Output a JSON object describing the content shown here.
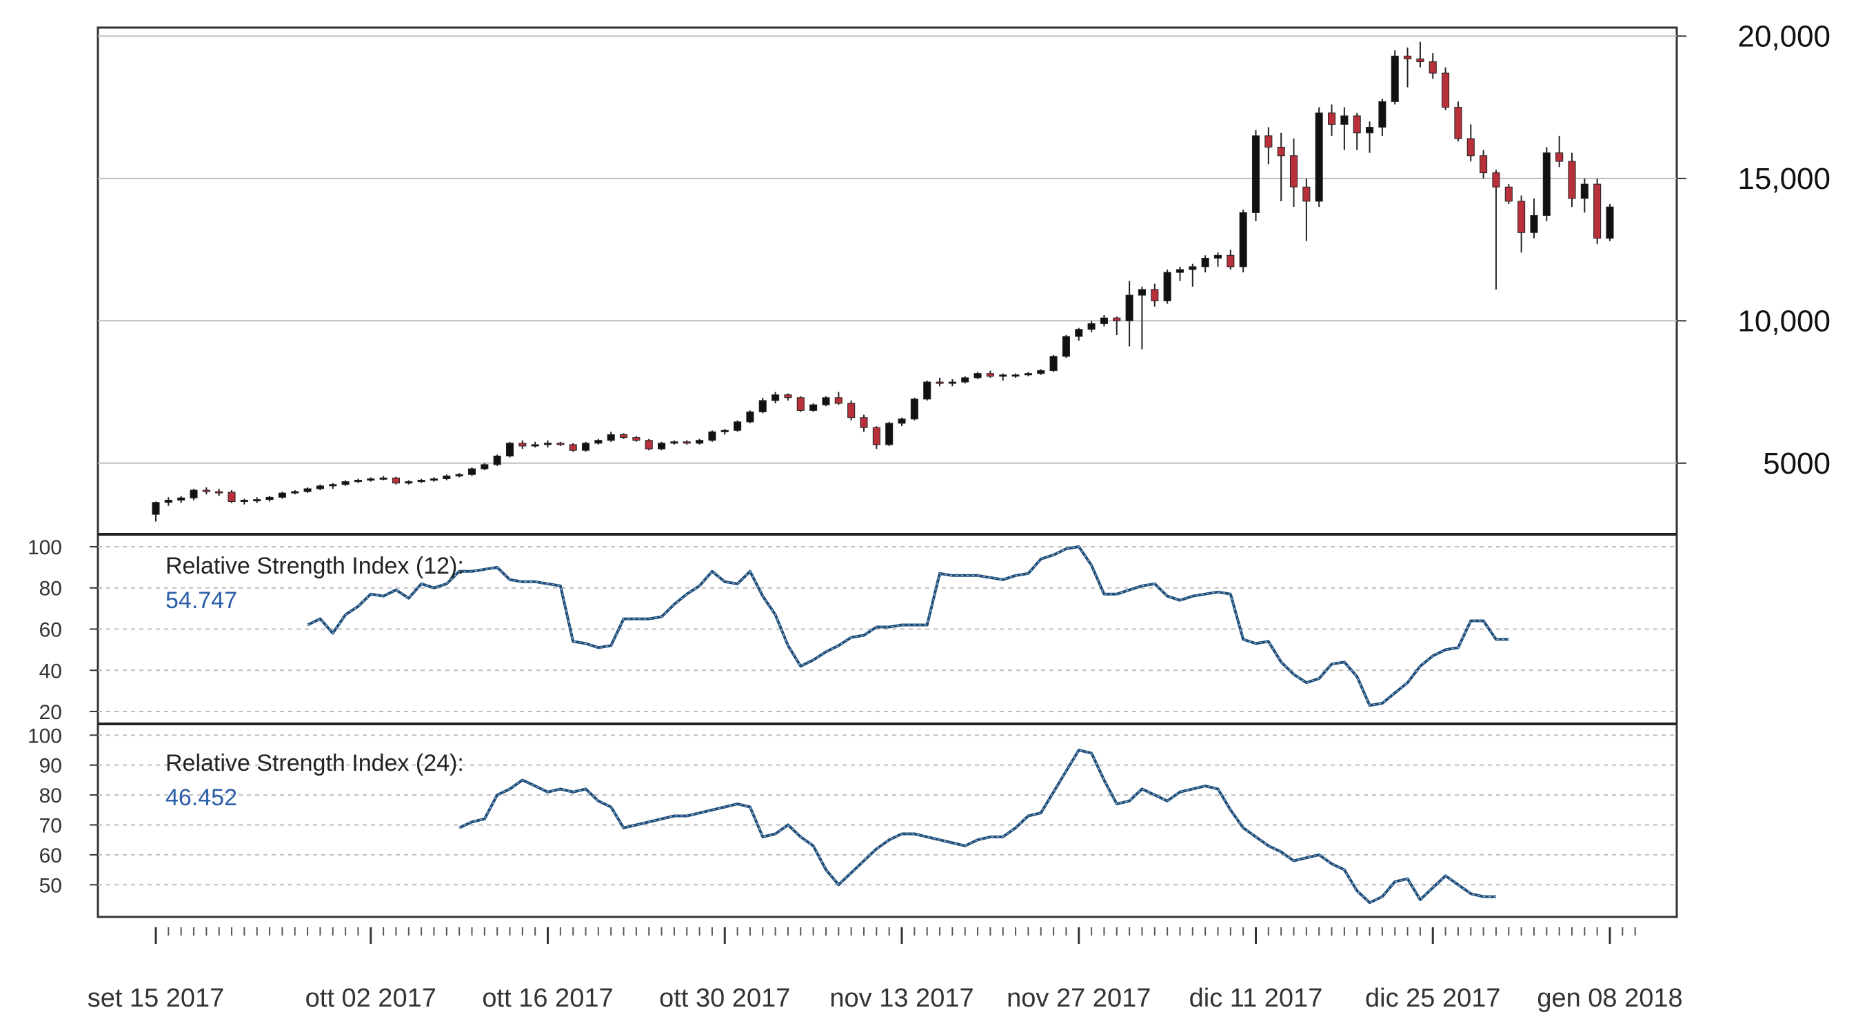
{
  "chart_data": {
    "type": "candlestick",
    "colors": {
      "up": "#111111",
      "down": "#b8313a",
      "rsi_line": "#1f4e79",
      "grid": "#bdbdbd",
      "frame": "#333333"
    },
    "x_tick_labels": [
      "set 15 2017",
      "ott 02 2017",
      "ott 16 2017",
      "ott 30 2017",
      "nov 13 2017",
      "nov 27 2017",
      "dic 11 2017",
      "dic 25 2017",
      "gen 08 2018"
    ],
    "x_tick_dates": [
      "2017-09-15",
      "2017-10-02",
      "2017-10-16",
      "2017-10-30",
      "2017-11-13",
      "2017-11-27",
      "2017-12-11",
      "2017-12-25",
      "2018-01-08"
    ],
    "price": {
      "y_tick_labels": [
        "5000",
        "10,000",
        "15,000",
        "20,000"
      ],
      "y_ticks": [
        5000,
        10000,
        15000,
        20000
      ],
      "ylim": [
        2500,
        20300
      ],
      "dates": [
        "2017-09-15",
        "2017-09-16",
        "2017-09-17",
        "2017-09-18",
        "2017-09-19",
        "2017-09-20",
        "2017-09-21",
        "2017-09-22",
        "2017-09-23",
        "2017-09-24",
        "2017-09-25",
        "2017-09-26",
        "2017-09-27",
        "2017-09-28",
        "2017-09-29",
        "2017-09-30",
        "2017-10-01",
        "2017-10-02",
        "2017-10-03",
        "2017-10-04",
        "2017-10-05",
        "2017-10-06",
        "2017-10-07",
        "2017-10-08",
        "2017-10-09",
        "2017-10-10",
        "2017-10-11",
        "2017-10-12",
        "2017-10-13",
        "2017-10-14",
        "2017-10-15",
        "2017-10-16",
        "2017-10-17",
        "2017-10-18",
        "2017-10-19",
        "2017-10-20",
        "2017-10-21",
        "2017-10-22",
        "2017-10-23",
        "2017-10-24",
        "2017-10-25",
        "2017-10-26",
        "2017-10-27",
        "2017-10-28",
        "2017-10-29",
        "2017-10-30",
        "2017-10-31",
        "2017-11-01",
        "2017-11-02",
        "2017-11-03",
        "2017-11-04",
        "2017-11-05",
        "2017-11-06",
        "2017-11-07",
        "2017-11-08",
        "2017-11-09",
        "2017-11-10",
        "2017-11-11",
        "2017-11-12",
        "2017-11-13",
        "2017-11-14",
        "2017-11-15",
        "2017-11-16",
        "2017-11-17",
        "2017-11-18",
        "2017-11-19",
        "2017-11-20",
        "2017-11-21",
        "2017-11-22",
        "2017-11-23",
        "2017-11-24",
        "2017-11-25",
        "2017-11-26",
        "2017-11-27",
        "2017-11-28",
        "2017-11-29",
        "2017-11-30",
        "2017-12-01",
        "2017-12-02",
        "2017-12-03",
        "2017-12-04",
        "2017-12-05",
        "2017-12-06",
        "2017-12-07",
        "2017-12-08",
        "2017-12-09",
        "2017-12-10",
        "2017-12-11",
        "2017-12-12",
        "2017-12-13",
        "2017-12-14",
        "2017-12-15",
        "2017-12-16",
        "2017-12-17",
        "2017-12-18",
        "2017-12-19",
        "2017-12-20",
        "2017-12-21",
        "2017-12-22",
        "2017-12-23",
        "2017-12-24",
        "2017-12-25",
        "2017-12-26",
        "2017-12-27",
        "2017-12-28",
        "2017-12-29",
        "2017-12-30",
        "2017-12-31",
        "2018-01-01",
        "2018-01-02",
        "2018-01-03",
        "2018-01-04",
        "2018-01-05",
        "2018-01-06",
        "2018-01-07",
        "2018-01-08",
        "2018-01-09",
        "2018-01-10"
      ],
      "ohlc": [
        [
          3200,
          3650,
          2950,
          3620
        ],
        [
          3620,
          3800,
          3500,
          3700
        ],
        [
          3700,
          3850,
          3600,
          3780
        ],
        [
          3780,
          4100,
          3700,
          4050
        ],
        [
          4050,
          4150,
          3900,
          4000
        ],
        [
          4000,
          4100,
          3850,
          3980
        ],
        [
          3980,
          4050,
          3600,
          3650
        ],
        [
          3650,
          3750,
          3550,
          3700
        ],
        [
          3700,
          3800,
          3600,
          3720
        ],
        [
          3720,
          3850,
          3650,
          3800
        ],
        [
          3800,
          4000,
          3750,
          3950
        ],
        [
          3950,
          4050,
          3900,
          4000
        ],
        [
          4000,
          4150,
          3950,
          4100
        ],
        [
          4100,
          4250,
          4050,
          4200
        ],
        [
          4200,
          4300,
          4100,
          4250
        ],
        [
          4250,
          4400,
          4200,
          4350
        ],
        [
          4350,
          4450,
          4300,
          4400
        ],
        [
          4400,
          4500,
          4350,
          4450
        ],
        [
          4450,
          4550,
          4400,
          4480
        ],
        [
          4480,
          4520,
          4250,
          4300
        ],
        [
          4300,
          4400,
          4250,
          4350
        ],
        [
          4350,
          4450,
          4300,
          4400
        ],
        [
          4400,
          4500,
          4350,
          4450
        ],
        [
          4450,
          4600,
          4400,
          4550
        ],
        [
          4550,
          4650,
          4500,
          4600
        ],
        [
          4600,
          4850,
          4550,
          4800
        ],
        [
          4800,
          5000,
          4750,
          4950
        ],
        [
          4950,
          5300,
          4900,
          5250
        ],
        [
          5250,
          5750,
          5200,
          5700
        ],
        [
          5700,
          5800,
          5500,
          5600
        ],
        [
          5600,
          5750,
          5550,
          5650
        ],
        [
          5650,
          5800,
          5550,
          5700
        ],
        [
          5700,
          5750,
          5600,
          5650
        ],
        [
          5650,
          5700,
          5400,
          5450
        ],
        [
          5450,
          5750,
          5400,
          5700
        ],
        [
          5700,
          5850,
          5650,
          5800
        ],
        [
          5800,
          6100,
          5750,
          6000
        ],
        [
          6000,
          6050,
          5850,
          5900
        ],
        [
          5900,
          5950,
          5750,
          5800
        ],
        [
          5800,
          5850,
          5450,
          5500
        ],
        [
          5500,
          5750,
          5450,
          5700
        ],
        [
          5700,
          5800,
          5650,
          5750
        ],
        [
          5750,
          5800,
          5650,
          5700
        ],
        [
          5700,
          5850,
          5650,
          5800
        ],
        [
          5800,
          6150,
          5750,
          6100
        ],
        [
          6100,
          6200,
          6000,
          6150
        ],
        [
          6150,
          6500,
          6100,
          6450
        ],
        [
          6450,
          6850,
          6400,
          6800
        ],
        [
          6800,
          7300,
          6750,
          7200
        ],
        [
          7200,
          7500,
          7100,
          7400
        ],
        [
          7400,
          7450,
          7200,
          7300
        ],
        [
          7300,
          7350,
          6800,
          6850
        ],
        [
          6850,
          7100,
          6800,
          7050
        ],
        [
          7050,
          7350,
          7000,
          7300
        ],
        [
          7300,
          7500,
          7050,
          7100
        ],
        [
          7100,
          7200,
          6500,
          6600
        ],
        [
          6600,
          6700,
          6100,
          6250
        ],
        [
          6250,
          6300,
          5500,
          5650
        ],
        [
          5650,
          6450,
          5600,
          6400
        ],
        [
          6400,
          6600,
          6300,
          6550
        ],
        [
          6550,
          7300,
          6500,
          7250
        ],
        [
          7250,
          7900,
          7200,
          7850
        ],
        [
          7850,
          8000,
          7700,
          7800
        ],
        [
          7800,
          7950,
          7700,
          7850
        ],
        [
          7850,
          8050,
          7800,
          8000
        ],
        [
          8000,
          8200,
          7950,
          8150
        ],
        [
          8150,
          8250,
          8000,
          8050
        ],
        [
          8050,
          8150,
          7900,
          8100
        ],
        [
          8100,
          8150,
          8000,
          8100
        ],
        [
          8100,
          8200,
          8050,
          8150
        ],
        [
          8150,
          8300,
          8100,
          8250
        ],
        [
          8250,
          8800,
          8200,
          8750
        ],
        [
          8750,
          9500,
          8700,
          9450
        ],
        [
          9450,
          9750,
          9300,
          9700
        ],
        [
          9700,
          10000,
          9600,
          9900
        ],
        [
          9900,
          10200,
          9800,
          10100
        ],
        [
          10100,
          10150,
          9500,
          10000
        ],
        [
          10000,
          11400,
          9100,
          10900
        ],
        [
          10900,
          11200,
          9000,
          11100
        ],
        [
          11100,
          11300,
          10500,
          10700
        ],
        [
          10700,
          11800,
          10600,
          11700
        ],
        [
          11700,
          11900,
          11400,
          11800
        ],
        [
          11800,
          12000,
          11200,
          11900
        ],
        [
          11900,
          12300,
          11700,
          12200
        ],
        [
          12200,
          12400,
          11900,
          12300
        ],
        [
          12300,
          12500,
          11800,
          11900
        ],
        [
          11900,
          13900,
          11700,
          13800
        ],
        [
          13800,
          16700,
          13500,
          16500
        ],
        [
          16500,
          16800,
          15500,
          16100
        ],
        [
          16100,
          16600,
          14200,
          15800
        ],
        [
          15800,
          16400,
          14000,
          14700
        ],
        [
          14700,
          15000,
          12800,
          14200
        ],
        [
          14200,
          17500,
          14000,
          17300
        ],
        [
          17300,
          17600,
          16500,
          16900
        ],
        [
          16900,
          17500,
          16000,
          17200
        ],
        [
          17200,
          17300,
          16000,
          16600
        ],
        [
          16600,
          17000,
          15900,
          16800
        ],
        [
          16800,
          17800,
          16500,
          17700
        ],
        [
          17700,
          19500,
          17600,
          19300
        ],
        [
          19300,
          19600,
          18200,
          19200
        ],
        [
          19200,
          19800,
          18900,
          19100
        ],
        [
          19100,
          19400,
          18500,
          18700
        ],
        [
          18700,
          18900,
          17400,
          17500
        ],
        [
          17500,
          17700,
          16300,
          16400
        ],
        [
          16400,
          16900,
          15600,
          15800
        ],
        [
          15800,
          16000,
          15000,
          15200
        ],
        [
          15200,
          15300,
          11100,
          14700
        ],
        [
          14700,
          14800,
          14100,
          14200
        ],
        [
          14200,
          14400,
          12400,
          13100
        ],
        [
          13100,
          14300,
          12900,
          13700
        ],
        [
          13700,
          16100,
          13500,
          15900
        ],
        [
          15900,
          16500,
          15400,
          15600
        ],
        [
          15600,
          15900,
          14000,
          14300
        ],
        [
          14300,
          15000,
          13800,
          14800
        ],
        [
          14800,
          15000,
          12700,
          12900
        ],
        [
          12900,
          14100,
          12800,
          14000
        ]
      ]
    },
    "rsi_panels": [
      {
        "title": "Relative Strength Index (12):",
        "value": "54.747",
        "y_tick_labels": [
          "20",
          "40",
          "60",
          "80",
          "100"
        ],
        "y_ticks": [
          20,
          40,
          60,
          80,
          100
        ],
        "ylim": [
          18,
          102
        ],
        "start_date": "2017-09-27",
        "values": [
          62,
          65,
          58,
          67,
          71,
          77,
          76,
          79,
          75,
          82,
          80,
          82,
          88,
          88,
          89,
          90,
          84,
          83,
          83,
          82,
          81,
          54,
          53,
          51,
          52,
          65,
          65,
          65,
          66,
          72,
          77,
          81,
          88,
          83,
          82,
          88,
          76,
          67,
          52,
          42,
          45,
          49,
          52,
          56,
          57,
          61,
          61,
          62,
          62,
          62,
          87,
          86,
          86,
          86,
          85,
          84,
          86,
          87,
          94,
          96,
          99,
          100,
          91,
          77,
          77,
          79,
          81,
          82,
          76,
          74,
          76,
          77,
          78,
          77,
          55,
          53,
          54,
          44,
          38,
          34,
          36,
          43,
          44,
          37,
          23,
          24,
          29,
          34,
          42,
          47,
          50,
          51,
          64,
          64,
          55,
          55
        ]
      },
      {
        "title": "Relative Strength Index (24):",
        "value": "46.452",
        "y_tick_labels": [
          "50",
          "60",
          "70",
          "80",
          "90",
          "100"
        ],
        "y_ticks": [
          50,
          60,
          70,
          80,
          90,
          100
        ],
        "ylim": [
          42,
          101
        ],
        "start_date": "2017-10-09",
        "values": [
          69,
          71,
          72,
          80,
          82,
          85,
          83,
          81,
          82,
          81,
          82,
          78,
          76,
          69,
          70,
          71,
          72,
          73,
          73,
          74,
          75,
          76,
          77,
          76,
          66,
          67,
          70,
          66,
          63,
          55,
          50,
          54,
          58,
          62,
          65,
          67,
          67,
          66,
          65,
          64,
          63,
          65,
          66,
          66,
          69,
          73,
          74,
          81,
          88,
          95,
          94,
          85,
          77,
          78,
          82,
          80,
          78,
          81,
          82,
          83,
          82,
          75,
          69,
          66,
          63,
          61,
          58,
          59,
          60,
          57,
          55,
          48,
          44,
          46,
          51,
          52,
          45,
          49,
          53,
          50,
          47,
          46,
          46
        ]
      }
    ]
  }
}
